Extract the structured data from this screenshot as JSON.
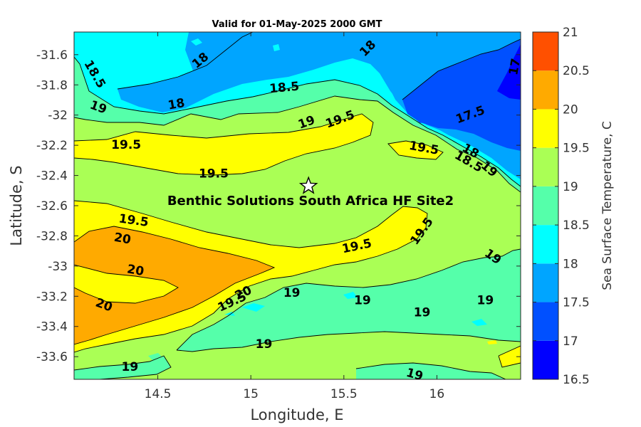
{
  "chart_data": {
    "type": "contour",
    "title": "Valid for 01-May-2025 2000 GMT",
    "xlabel": "Longitude, E",
    "ylabel": "Latitude, S",
    "colorbar_label": "Sea Surface Temperature, C",
    "xlim": [
      14.05,
      16.45
    ],
    "ylim": [
      -33.75,
      -31.45
    ],
    "x_ticks": [
      14.5,
      15,
      15.5,
      16
    ],
    "x_tick_labels": [
      "14.5",
      "15",
      "15.5",
      "16"
    ],
    "y_ticks": [
      -31.6,
      -31.8,
      -32,
      -32.2,
      -32.4,
      -32.6,
      -32.8,
      -33,
      -33.2,
      -33.4,
      -33.6
    ],
    "y_tick_labels": [
      "-31.6",
      "-31.8",
      "-32",
      "-32.2",
      "-32.4",
      "-32.6",
      "-32.8",
      "-33",
      "-33.2",
      "-33.4",
      "-33.6"
    ],
    "levels": [
      16.5,
      17,
      17.5,
      18,
      18.5,
      19,
      19.5,
      20,
      20.5,
      21
    ],
    "level_labels": [
      "16.5",
      "17",
      "17.5",
      "18",
      "18.5",
      "19",
      "19.5",
      "20",
      "20.5",
      "21"
    ],
    "colors": [
      "#0000ff",
      "#0050ff",
      "#00a5ff",
      "#00ffff",
      "#55ffaa",
      "#aaff55",
      "#ffff00",
      "#ffaa00",
      "#ff5000"
    ],
    "site": {
      "name": "Benthic Solutions South Africa HF Site2",
      "lon": 15.31,
      "lat": -32.47
    },
    "contour_labels": [
      {
        "text": "18",
        "lon": 14.73,
        "lat": -31.64,
        "rot": -40
      },
      {
        "text": "18",
        "lon": 15.63,
        "lat": -31.56,
        "rot": -45
      },
      {
        "text": "17",
        "lon": 16.42,
        "lat": -31.68,
        "rot": -80
      },
      {
        "text": "18.5",
        "lon": 14.16,
        "lat": -31.73,
        "rot": 60
      },
      {
        "text": "18.5",
        "lon": 15.18,
        "lat": -31.82,
        "rot": -5
      },
      {
        "text": "18",
        "lon": 14.6,
        "lat": -31.93,
        "rot": -10
      },
      {
        "text": "19",
        "lon": 14.18,
        "lat": -31.95,
        "rot": 20
      },
      {
        "text": "19",
        "lon": 15.3,
        "lat": -32.05,
        "rot": -20
      },
      {
        "text": "19.5",
        "lon": 15.48,
        "lat": -32.03,
        "rot": -20
      },
      {
        "text": "17.5",
        "lon": 16.18,
        "lat": -32.0,
        "rot": -20
      },
      {
        "text": "19.5",
        "lon": 14.33,
        "lat": -32.2,
        "rot": 0
      },
      {
        "text": "19.5",
        "lon": 15.93,
        "lat": -32.22,
        "rot": 10
      },
      {
        "text": "18",
        "lon": 16.18,
        "lat": -32.24,
        "rot": 30
      },
      {
        "text": "18.5",
        "lon": 16.17,
        "lat": -32.31,
        "rot": 30
      },
      {
        "text": "19",
        "lon": 16.28,
        "lat": -32.36,
        "rot": 40
      },
      {
        "text": "19.5",
        "lon": 14.8,
        "lat": -32.39,
        "rot": 0
      },
      {
        "text": "19.5",
        "lon": 14.37,
        "lat": -32.7,
        "rot": 8
      },
      {
        "text": "19.5",
        "lon": 15.92,
        "lat": -32.77,
        "rot": -55
      },
      {
        "text": "20",
        "lon": 14.31,
        "lat": -32.82,
        "rot": 10
      },
      {
        "text": "19.5",
        "lon": 15.57,
        "lat": -32.87,
        "rot": -12
      },
      {
        "text": "19",
        "lon": 16.3,
        "lat": -32.94,
        "rot": 35
      },
      {
        "text": "20",
        "lon": 14.38,
        "lat": -33.03,
        "rot": 10
      },
      {
        "text": "20",
        "lon": 14.96,
        "lat": -33.18,
        "rot": -25
      },
      {
        "text": "19.5",
        "lon": 14.9,
        "lat": -33.24,
        "rot": -25
      },
      {
        "text": "19",
        "lon": 15.22,
        "lat": -33.18,
        "rot": 0
      },
      {
        "text": "19",
        "lon": 15.6,
        "lat": -33.23,
        "rot": 0
      },
      {
        "text": "19",
        "lon": 16.26,
        "lat": -33.23,
        "rot": 0
      },
      {
        "text": "20",
        "lon": 14.21,
        "lat": -33.26,
        "rot": 20
      },
      {
        "text": "19",
        "lon": 15.92,
        "lat": -33.31,
        "rot": 0
      },
      {
        "text": "19",
        "lon": 15.07,
        "lat": -33.52,
        "rot": 0
      },
      {
        "text": "19",
        "lon": 14.35,
        "lat": -33.67,
        "rot": 0
      },
      {
        "text": "19",
        "lon": 15.88,
        "lat": -33.72,
        "rot": 15
      }
    ]
  }
}
